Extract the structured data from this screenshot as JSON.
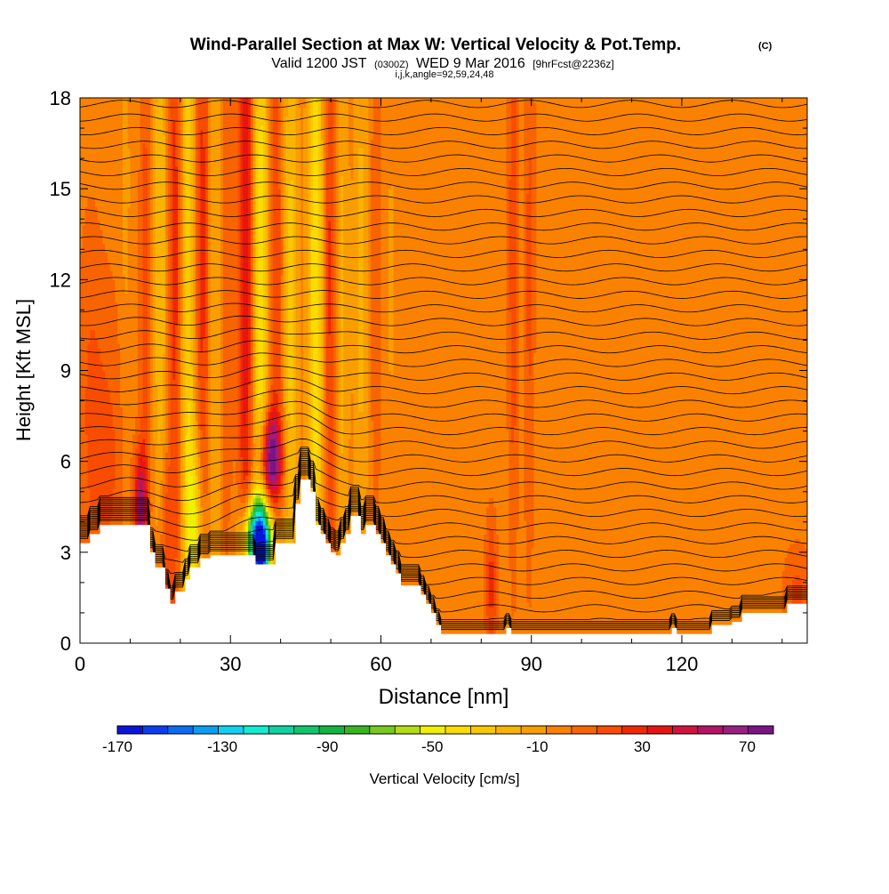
{
  "header": {
    "title": "Wind-Parallel Section at Max W: Vertical Velocity & Pot.Temp.",
    "copyright": "(C)",
    "valid_prefix": "Valid 1200 JST",
    "valid_utc": "(0300Z)",
    "valid_date": "WED 9 Mar 2016",
    "forecast": "[9hrFcst@2236z]",
    "indices": "i,j,k,angle=92,59,24,48"
  },
  "chart_data": {
    "type": "heatmap",
    "xlabel": "Distance [nm]",
    "ylabel": "Height [Kft MSL]",
    "xlim": [
      0,
      145
    ],
    "ylim": [
      0,
      18
    ],
    "x_ticks": [
      0,
      30,
      60,
      90,
      120
    ],
    "x_tick_labels": [
      "0",
      "30",
      "60",
      "90",
      "120"
    ],
    "y_ticks": [
      0,
      3,
      6,
      9,
      12,
      15,
      18
    ],
    "y_tick_labels": [
      "0",
      "3",
      "6",
      "9",
      "12",
      "15",
      "18"
    ],
    "colorbar": {
      "label": "Vertical Velocity [cm/s]",
      "min": -170,
      "max": 80,
      "step": 10,
      "tick_values": [
        -170,
        -130,
        -90,
        -50,
        -10,
        30,
        70
      ],
      "tick_labels": [
        "-170",
        "-130",
        "-90",
        "-50",
        "-10",
        "30",
        "70"
      ],
      "colors": [
        "#0a14d8",
        "#0a3cf0",
        "#0a6cf2",
        "#0a9ef2",
        "#10d2f0",
        "#12ecd2",
        "#10d2a0",
        "#10c66c",
        "#14b440",
        "#38b41e",
        "#78c81e",
        "#b4dc14",
        "#f0f000",
        "#fadc00",
        "#fac800",
        "#fab400",
        "#fa9e00",
        "#fa8200",
        "#f86400",
        "#f84c00",
        "#f02800",
        "#e81414",
        "#d01440",
        "#b41464",
        "#962080",
        "#7c1486"
      ]
    },
    "background_velocity": 5,
    "terrain": [
      [
        0,
        3.3
      ],
      [
        2,
        3.3
      ],
      [
        2,
        3.6
      ],
      [
        4,
        3.6
      ],
      [
        4,
        3.9
      ],
      [
        14,
        3.9
      ],
      [
        14,
        3.0
      ],
      [
        15,
        3.0
      ],
      [
        15,
        2.5
      ],
      [
        17,
        2.5
      ],
      [
        17,
        1.8
      ],
      [
        18,
        1.8
      ],
      [
        18,
        1.3
      ],
      [
        19,
        1.3
      ],
      [
        19,
        1.7
      ],
      [
        21,
        1.7
      ],
      [
        21,
        2.1
      ],
      [
        22,
        2.1
      ],
      [
        22,
        2.5
      ],
      [
        24,
        2.5
      ],
      [
        24,
        2.8
      ],
      [
        26,
        2.8
      ],
      [
        26,
        2.9
      ],
      [
        35,
        2.9
      ],
      [
        35,
        2.6
      ],
      [
        39,
        2.6
      ],
      [
        39,
        3.3
      ],
      [
        43,
        3.3
      ],
      [
        43,
        4.6
      ],
      [
        44,
        4.6
      ],
      [
        44,
        5.4
      ],
      [
        46,
        5.4
      ],
      [
        46,
        5.0
      ],
      [
        47,
        5.0
      ],
      [
        47,
        3.9
      ],
      [
        48,
        3.9
      ],
      [
        48,
        3.6
      ],
      [
        49,
        3.6
      ],
      [
        49,
        3.3
      ],
      [
        50,
        3.3
      ],
      [
        50,
        3.0
      ],
      [
        51,
        3.0
      ],
      [
        51,
        2.9
      ],
      [
        52,
        2.9
      ],
      [
        52,
        3.3
      ],
      [
        53,
        3.3
      ],
      [
        53,
        3.6
      ],
      [
        54,
        3.6
      ],
      [
        54,
        4.2
      ],
      [
        56,
        4.2
      ],
      [
        56,
        3.6
      ],
      [
        57,
        3.6
      ],
      [
        57,
        3.9
      ],
      [
        59,
        3.9
      ],
      [
        59,
        3.6
      ],
      [
        60,
        3.6
      ],
      [
        60,
        3.3
      ],
      [
        61,
        3.3
      ],
      [
        61,
        2.9
      ],
      [
        62,
        2.9
      ],
      [
        62,
        2.6
      ],
      [
        63,
        2.6
      ],
      [
        63,
        2.3
      ],
      [
        64,
        2.3
      ],
      [
        64,
        1.9
      ],
      [
        68,
        1.9
      ],
      [
        68,
        1.6
      ],
      [
        69,
        1.6
      ],
      [
        69,
        1.3
      ],
      [
        70,
        1.3
      ],
      [
        70,
        1.0
      ],
      [
        71,
        1.0
      ],
      [
        71,
        0.6
      ],
      [
        72,
        0.6
      ],
      [
        72,
        0.3
      ],
      [
        85,
        0.3
      ],
      [
        85,
        0.5
      ],
      [
        86,
        0.5
      ],
      [
        86,
        0.3
      ],
      [
        118,
        0.3
      ],
      [
        118,
        0.5
      ],
      [
        119,
        0.5
      ],
      [
        119,
        0.3
      ],
      [
        126,
        0.3
      ],
      [
        126,
        0.6
      ],
      [
        130,
        0.6
      ],
      [
        130,
        0.7
      ],
      [
        132,
        0.7
      ],
      [
        132,
        1.0
      ],
      [
        141,
        1.0
      ],
      [
        141,
        1.3
      ],
      [
        145,
        1.3
      ]
    ],
    "velocity_features": [
      {
        "x": 2,
        "y": 8,
        "sx": 1.8,
        "sy": 4.5,
        "value": 14
      },
      {
        "x": 6,
        "y": 6,
        "sx": 2.5,
        "sy": 4.0,
        "value": 16
      },
      {
        "x": 9,
        "y": 13,
        "sx": 0.9,
        "sy": 8,
        "value": -8
      },
      {
        "x": 12,
        "y": 4.5,
        "sx": 0.9,
        "sy": 1.2,
        "value": 60
      },
      {
        "x": 13,
        "y": 11,
        "sx": 0.8,
        "sy": 8,
        "value": 20
      },
      {
        "x": 16,
        "y": 13,
        "sx": 0.9,
        "sy": 9,
        "value": -25
      },
      {
        "x": 17,
        "y": 3.5,
        "sx": 1.0,
        "sy": 2.0,
        "value": 25
      },
      {
        "x": 19,
        "y": 13,
        "sx": 0.9,
        "sy": 9,
        "value": 30
      },
      {
        "x": 21.5,
        "y": 11,
        "sx": 1.0,
        "sy": 10,
        "value": -35
      },
      {
        "x": 23,
        "y": 4,
        "sx": 1.2,
        "sy": 2.0,
        "value": -40
      },
      {
        "x": 24.5,
        "y": 13,
        "sx": 1.0,
        "sy": 9,
        "value": 30
      },
      {
        "x": 27,
        "y": 12,
        "sx": 1.1,
        "sy": 10,
        "value": -18
      },
      {
        "x": 29,
        "y": 11.5,
        "sx": 1.0,
        "sy": 8,
        "value": 15
      },
      {
        "x": 33,
        "y": 13,
        "sx": 1.0,
        "sy": 9,
        "value": 45
      },
      {
        "x": 36,
        "y": 12,
        "sx": 1.1,
        "sy": 8,
        "value": -45
      },
      {
        "x": 35.5,
        "y": 3.5,
        "sx": 2.0,
        "sy": 0.9,
        "value": -140
      },
      {
        "x": 36,
        "y": 3.0,
        "sx": 1.0,
        "sy": 0.5,
        "value": -100
      },
      {
        "x": 38,
        "y": 6.1,
        "sx": 1.5,
        "sy": 1.0,
        "value": 80
      },
      {
        "x": 39,
        "y": 12,
        "sx": 1.0,
        "sy": 7,
        "value": 25
      },
      {
        "x": 42,
        "y": 11,
        "sx": 1.0,
        "sy": 8,
        "value": -30
      },
      {
        "x": 47,
        "y": 12,
        "sx": 1.1,
        "sy": 9,
        "value": -45
      },
      {
        "x": 50,
        "y": 12,
        "sx": 1.0,
        "sy": 9,
        "value": 30
      },
      {
        "x": 52,
        "y": 11,
        "sx": 1.0,
        "sy": 9,
        "value": -20
      },
      {
        "x": 56,
        "y": 12,
        "sx": 1.0,
        "sy": 8,
        "value": -18
      },
      {
        "x": 59,
        "y": 12,
        "sx": 0.8,
        "sy": 7,
        "value": 12
      },
      {
        "x": 62,
        "y": 12,
        "sx": 0.8,
        "sy": 6,
        "value": -6
      },
      {
        "x": 82,
        "y": 2.0,
        "sx": 0.8,
        "sy": 1.5,
        "value": 30
      },
      {
        "x": 86.5,
        "y": 13,
        "sx": 0.8,
        "sy": 7,
        "value": 25
      },
      {
        "x": 88,
        "y": 13,
        "sx": 0.9,
        "sy": 7,
        "value": -6
      },
      {
        "x": 89.5,
        "y": 12,
        "sx": 0.9,
        "sy": 7,
        "value": 20
      },
      {
        "x": 93,
        "y": 8,
        "sx": 3.0,
        "sy": 5,
        "value": -3
      },
      {
        "x": 108,
        "y": 15,
        "sx": 2.0,
        "sy": 3.5,
        "value": -3
      },
      {
        "x": 130,
        "y": 8,
        "sx": 4.0,
        "sy": 4,
        "value": -3
      },
      {
        "x": 143,
        "y": 1.5,
        "sx": 2.0,
        "sy": 1.2,
        "value": 18
      }
    ],
    "theta_contours": {
      "spacing": 0.45,
      "bulges": [
        {
          "x": 37,
          "sx": 7,
          "amp": 0.9
        },
        {
          "x": 45,
          "sx": 3,
          "amp": 0.6
        },
        {
          "x": 12,
          "sx": 5,
          "amp": 0.3
        }
      ]
    }
  },
  "colors": {
    "frame": "#000000",
    "contour": "#000000",
    "terrain": "#ffffff"
  }
}
